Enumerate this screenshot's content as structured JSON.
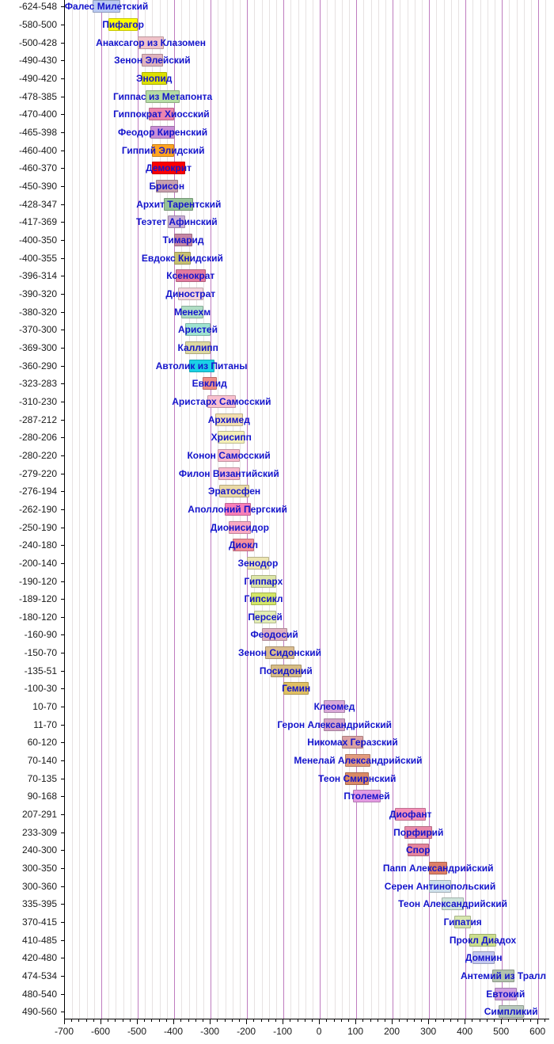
{
  "chart_data": {
    "type": "bar",
    "subtype": "timeline-gantt",
    "title": "",
    "xlabel": "",
    "ylabel": "",
    "x_axis": {
      "min": -700,
      "max": 630,
      "major_tick_step": 100,
      "minor_tick_step": 20,
      "tick_labels": [
        "-700",
        "-600",
        "-500",
        "-400",
        "-300",
        "-200",
        "-100",
        "0",
        "100",
        "200",
        "300",
        "400",
        "500",
        "600"
      ]
    },
    "grid": {
      "major_color": "#bf7cbf",
      "minor_color": "#e7e2e2",
      "on": true
    },
    "label_color": "#1414cc",
    "rows": [
      {
        "label": "-624-548",
        "name": "Фалес Милетский",
        "start": -624,
        "end": -548,
        "color": "#b9c9f2"
      },
      {
        "label": "-580-500",
        "name": "Пифагор",
        "start": -580,
        "end": -500,
        "color": "#ffff00"
      },
      {
        "label": "-500-428",
        "name": "Анаксагор из Клазомен",
        "start": -500,
        "end": -428,
        "color": "#f0c3ca"
      },
      {
        "label": "-490-430",
        "name": "Зенон Элейский",
        "start": -490,
        "end": -430,
        "color": "#dfb3bd"
      },
      {
        "label": "-490-420",
        "name": "Энопид",
        "start": -490,
        "end": -420,
        "color": "#dde000"
      },
      {
        "label": "-478-385",
        "name": "Гиппас из Метапонта",
        "start": -478,
        "end": -385,
        "color": "#b5dca5"
      },
      {
        "label": "-470-400",
        "name": "Гиппократ Хиосский",
        "start": -470,
        "end": -400,
        "color": "#ec84ae"
      },
      {
        "label": "-465-398",
        "name": "Феодор Киренский",
        "start": -465,
        "end": -398,
        "color": "#c98fd6"
      },
      {
        "label": "-460-400",
        "name": "Гиппий Элидский",
        "start": -460,
        "end": -400,
        "color": "#ffa420"
      },
      {
        "label": "-460-370",
        "name": "Демокрит",
        "start": -460,
        "end": -370,
        "color": "#ff0000"
      },
      {
        "label": "-450-390",
        "name": "Брисон",
        "start": -450,
        "end": -390,
        "color": "#c79fae"
      },
      {
        "label": "-428-347",
        "name": "Архит Тарентский",
        "start": -428,
        "end": -347,
        "color": "#97c297"
      },
      {
        "label": "-417-369",
        "name": "Теэтет Афинский",
        "start": -417,
        "end": -369,
        "color": "#c9aed6"
      },
      {
        "label": "-400-350",
        "name": "Тимарид",
        "start": -400,
        "end": -350,
        "color": "#c687a5"
      },
      {
        "label": "-400-355",
        "name": "Евдокс Книдский",
        "start": -400,
        "end": -355,
        "color": "#c8c171"
      },
      {
        "label": "-396-314",
        "name": "Ксенократ",
        "start": -396,
        "end": -314,
        "color": "#e37ba0"
      },
      {
        "label": "-390-320",
        "name": "Динострат",
        "start": -390,
        "end": -320,
        "color": "#f5d5dc"
      },
      {
        "label": "-380-320",
        "name": "Менехм",
        "start": -380,
        "end": -320,
        "color": "#b0ddc4"
      },
      {
        "label": "-370-300",
        "name": "Аристей",
        "start": -370,
        "end": -300,
        "color": "#9fe3d0"
      },
      {
        "label": "-369-300",
        "name": "Каллипп",
        "start": -369,
        "end": -300,
        "color": "#ded9a2"
      },
      {
        "label": "-360-290",
        "name": "Автолик из Питаны",
        "start": -360,
        "end": -290,
        "color": "#1ad2e5"
      },
      {
        "label": "-323-283",
        "name": "Евклид",
        "start": -323,
        "end": -283,
        "color": "#ef8e87"
      },
      {
        "label": "-310-230",
        "name": "Аристарх Самосский",
        "start": -310,
        "end": -230,
        "color": "#f9c0cf"
      },
      {
        "label": "-287-212",
        "name": "Архимед",
        "start": -287,
        "end": -212,
        "color": "#f2deb0"
      },
      {
        "label": "-280-206",
        "name": "Хрисипп",
        "start": -280,
        "end": -206,
        "color": "#f5f0b8"
      },
      {
        "label": "-280-220",
        "name": "Конон Самосский",
        "start": -280,
        "end": -220,
        "color": "#f9b8cc"
      },
      {
        "label": "-279-220",
        "name": "Филон Византийский",
        "start": -279,
        "end": -220,
        "color": "#f9b8cc"
      },
      {
        "label": "-276-194",
        "name": "Эратосфен",
        "start": -276,
        "end": -194,
        "color": "#ead9a6"
      },
      {
        "label": "-262-190",
        "name": "Аполлоний Пергский",
        "start": -262,
        "end": -190,
        "color": "#f77fb8"
      },
      {
        "label": "-250-190",
        "name": "Дионисидор",
        "start": -250,
        "end": -190,
        "color": "#f9aac4"
      },
      {
        "label": "-240-180",
        "name": "Диокл",
        "start": -240,
        "end": -180,
        "color": "#f58f9b"
      },
      {
        "label": "-200-140",
        "name": "Зенодор",
        "start": -200,
        "end": -140,
        "color": "#ece5b2"
      },
      {
        "label": "-190-120",
        "name": "Гиппарх",
        "start": -190,
        "end": -120,
        "color": "#dde6a8"
      },
      {
        "label": "-189-120",
        "name": "Гипсикл",
        "start": -189,
        "end": -120,
        "color": "#d3e668"
      },
      {
        "label": "-180-120",
        "name": "Персей",
        "start": -180,
        "end": -120,
        "color": "#e3edb5"
      },
      {
        "label": "-160-90",
        "name": "Феодосий",
        "start": -160,
        "end": -90,
        "color": "#dfb0c0"
      },
      {
        "label": "-150-70",
        "name": "Зенон Сидонский",
        "start": -150,
        "end": -70,
        "color": "#d9bc8f"
      },
      {
        "label": "-135-51",
        "name": "Посидоний",
        "start": -135,
        "end": -51,
        "color": "#d6bc85"
      },
      {
        "label": "-100-30",
        "name": "Гемин",
        "start": -100,
        "end": -30,
        "color": "#e0c063"
      },
      {
        "label": "10-70",
        "name": "Клеомед",
        "start": 10,
        "end": 70,
        "color": "#d8a8d8"
      },
      {
        "label": "11-70",
        "name": "Герон Александрийский",
        "start": 11,
        "end": 70,
        "color": "#d4a3c8"
      },
      {
        "label": "60-120",
        "name": "Никомах Геразский",
        "start": 60,
        "end": 120,
        "color": "#dba3a3"
      },
      {
        "label": "70-140",
        "name": "Менелай Александрийский",
        "start": 70,
        "end": 140,
        "color": "#e39b7d"
      },
      {
        "label": "70-135",
        "name": "Теон Смирнский",
        "start": 70,
        "end": 135,
        "color": "#d98a66"
      },
      {
        "label": "90-168",
        "name": "Птолемей",
        "start": 90,
        "end": 168,
        "color": "#e39be3"
      },
      {
        "label": "207-291",
        "name": "Диофант",
        "start": 207,
        "end": 291,
        "color": "#f48fb8"
      },
      {
        "label": "233-309",
        "name": "Порфирий",
        "start": 233,
        "end": 309,
        "color": "#e889a8"
      },
      {
        "label": "240-300",
        "name": "Спор",
        "start": 240,
        "end": 300,
        "color": "#e4849c"
      },
      {
        "label": "300-350",
        "name": "Папп Александрийский",
        "start": 300,
        "end": 350,
        "color": "#dd7f66"
      },
      {
        "label": "300-360",
        "name": "Серен Антинопольский",
        "start": 300,
        "end": 360,
        "color": "#cfe0ec"
      },
      {
        "label": "335-395",
        "name": "Теон Александрийский",
        "start": 335,
        "end": 395,
        "color": "#cfe3da"
      },
      {
        "label": "370-415",
        "name": "Гипатия",
        "start": 370,
        "end": 415,
        "color": "#d7e6b0"
      },
      {
        "label": "410-485",
        "name": "Прокл Диадох",
        "start": 410,
        "end": 485,
        "color": "#ccdf8e"
      },
      {
        "label": "420-480",
        "name": "Домнин",
        "start": 420,
        "end": 480,
        "color": "#c3c8ef"
      },
      {
        "label": "474-534",
        "name": "Антемий из Тралл",
        "start": 474,
        "end": 534,
        "color": "#b3c3ae"
      },
      {
        "label": "480-540",
        "name": "Евтокий",
        "start": 480,
        "end": 540,
        "color": "#cf9fdf"
      },
      {
        "label": "490-560",
        "name": "Симпликий",
        "start": 490,
        "end": 560,
        "color": "#b9c9bc"
      }
    ]
  }
}
